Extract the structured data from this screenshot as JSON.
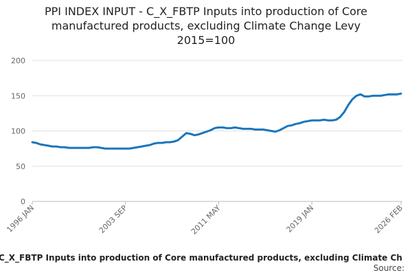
{
  "chart_data": {
    "type": "line",
    "title": [
      "PPI INDEX INPUT - C_X_FBTP Inputs into production of Core",
      "manufactured products, excluding Climate Change Levy",
      "2015=100"
    ],
    "footer": "C_X_FBTP Inputs into production of Core manufactured products, excluding Climate Ch",
    "source": "Source:",
    "categories": [
      "1996 JAN",
      null,
      null,
      null,
      null,
      null,
      null,
      null,
      null,
      null,
      null,
      null,
      null,
      null,
      null,
      null,
      null,
      null,
      null,
      null,
      null,
      null,
      null,
      "2003 SEP",
      null,
      null,
      null,
      null,
      null,
      null,
      null,
      null,
      null,
      null,
      null,
      null,
      null,
      null,
      null,
      null,
      null,
      null,
      null,
      null,
      null,
      null,
      "2011 MAY",
      null,
      null,
      null,
      null,
      null,
      null,
      null,
      null,
      null,
      null,
      null,
      null,
      null,
      null,
      null,
      null,
      null,
      null,
      null,
      null,
      null,
      null,
      "2019 JAN",
      null,
      null,
      null,
      null,
      null,
      null,
      null,
      null,
      null,
      null,
      null,
      null,
      null,
      null,
      null,
      null,
      null,
      null,
      null,
      null,
      null,
      "2026 FEB"
    ],
    "series": [
      {
        "name": "C_X_FBTP Inputs into production of Core manufactured products, excluding Climate Change Levy",
        "color": "#1a75bb",
        "values": [
          84,
          83,
          81,
          80,
          79,
          78,
          78,
          77,
          77,
          76,
          76,
          76,
          76,
          76,
          76,
          77,
          77,
          76,
          75,
          75,
          75,
          75,
          75,
          75,
          75,
          76,
          77,
          78,
          79,
          80,
          82,
          83,
          83,
          84,
          84,
          85,
          87,
          92,
          97,
          96,
          94,
          95,
          97,
          99,
          101,
          104,
          105,
          105,
          104,
          104,
          105,
          104,
          103,
          103,
          103,
          102,
          102,
          102,
          101,
          100,
          99,
          101,
          104,
          107,
          108,
          110,
          111,
          113,
          114,
          115,
          115,
          115,
          116,
          115,
          115,
          116,
          120,
          127,
          137,
          145,
          150,
          152,
          149,
          149,
          150,
          150,
          150,
          151,
          152,
          152,
          152,
          153
        ]
      }
    ],
    "ylim": [
      0,
      200
    ],
    "yticks": [
      0,
      50,
      100,
      150,
      200
    ],
    "grid": true
  }
}
